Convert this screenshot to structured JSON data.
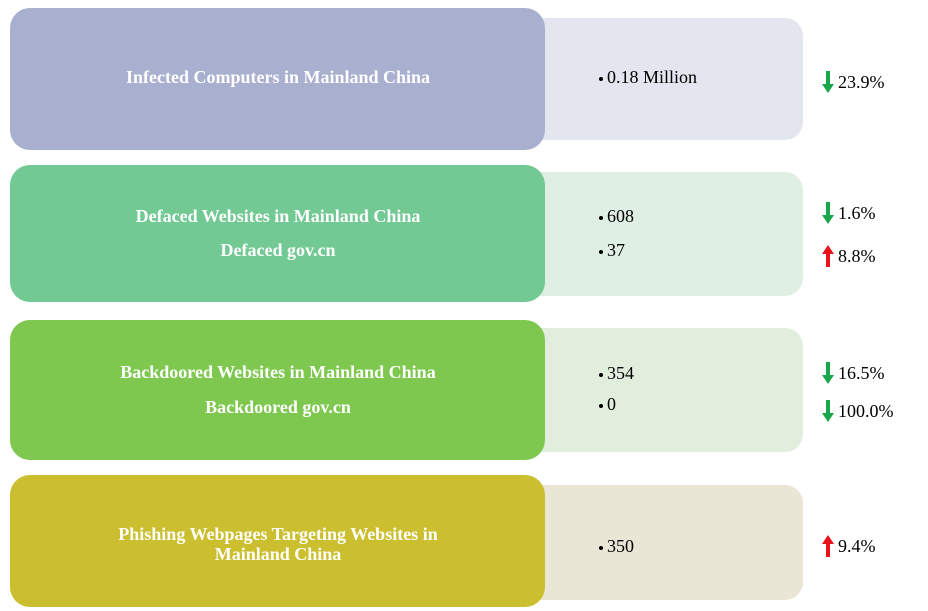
{
  "rows": [
    {
      "label": [
        "Infected Computers in Mainland China"
      ],
      "color": "#a9b0cf",
      "panel_color": "#e3e6ee",
      "items": [
        {
          "value": "0.18 Million",
          "change": "23.9%",
          "direction": "down"
        }
      ]
    },
    {
      "label": [
        "Defaced Websites in Mainland China",
        "Defaced gov.cn"
      ],
      "color": "#72c993",
      "panel_color": "#e0efe4",
      "items": [
        {
          "value": "608",
          "change": "1.6%",
          "direction": "down"
        },
        {
          "value": "37",
          "change": "8.8%",
          "direction": "up"
        }
      ]
    },
    {
      "label": [
        "Backdoored Websites in Mainland China",
        "Backdoored gov.cn"
      ],
      "color": "#7ec850",
      "panel_color": "#e2eedd",
      "items": [
        {
          "value": "354",
          "change": "16.5%",
          "direction": "down"
        },
        {
          "value": "0",
          "change": "100.0%",
          "direction": "down"
        }
      ]
    },
    {
      "label": [
        "Phishing Webpages Targeting Websites in",
        "Mainland China"
      ],
      "color": "#cbbf30",
      "panel_color": "#e9e6d5",
      "items": [
        {
          "value": "350",
          "change": "9.4%",
          "direction": "up"
        }
      ]
    }
  ]
}
